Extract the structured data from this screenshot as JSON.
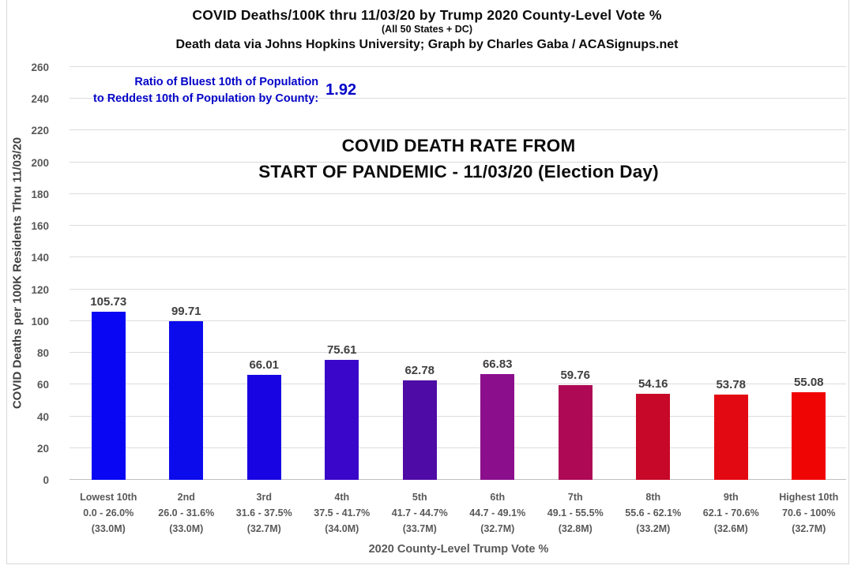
{
  "header": {
    "title": "COVID Deaths/100K thru 11/03/20 by Trump 2020 County-Level Vote %",
    "subtitle": "(All 50 States + DC)",
    "credit": "Death data via Johns Hopkins University; Graph by Charles Gaba / ACASignups.net"
  },
  "ratio": {
    "label_line1": "Ratio of Bluest 10th of Population",
    "label_line2": "to Reddest 10th of Population by County:",
    "value": "1.92"
  },
  "chart_data": {
    "type": "bar",
    "title": "COVID DEATH RATE FROM START OF PANDEMIC - 11/03/20 (Election Day)",
    "title_line1": "COVID DEATH RATE FROM",
    "title_line2": "START OF PANDEMIC - 11/03/20 (Election Day)",
    "xlabel": "2020 County-Level Trump Vote %",
    "ylabel": "COVID Deaths per 100K Residents Thru 11/03/20",
    "ylim": [
      0,
      260
    ],
    "ytick_step": 20,
    "grid": true,
    "legend": "none",
    "categories": [
      {
        "name": "Lowest 10th",
        "range": "0.0 - 26.0%",
        "population": "(33.0M)"
      },
      {
        "name": "2nd",
        "range": "26.0 - 31.6%",
        "population": "(33.0M)"
      },
      {
        "name": "3rd",
        "range": "31.6 - 37.5%",
        "population": "(32.7M)"
      },
      {
        "name": "4th",
        "range": "37.5 - 41.7%",
        "population": "(34.0M)"
      },
      {
        "name": "5th",
        "range": "41.7 - 44.7%",
        "population": "(33.7M)"
      },
      {
        "name": "6th",
        "range": "44.7 - 49.1%",
        "population": "(32.7M)"
      },
      {
        "name": "7th",
        "range": "49.1 - 55.5%",
        "population": "(32.8M)"
      },
      {
        "name": "8th",
        "range": "55.6 - 62.1%",
        "population": "(33.2M)"
      },
      {
        "name": "9th",
        "range": "62.1 - 70.6%",
        "population": "(32.6M)"
      },
      {
        "name": "Highest 10th",
        "range": "70.6 - 100%",
        "population": "(32.7M)"
      }
    ],
    "values": [
      105.73,
      99.71,
      66.01,
      75.61,
      62.78,
      66.83,
      59.76,
      54.16,
      53.78,
      55.08
    ],
    "bar_colors": [
      "#0806F2",
      "#0B0BEC",
      "#1804E2",
      "#3A06C9",
      "#4E0BA6",
      "#8B0E8C",
      "#AE0954",
      "#C70829",
      "#E30912",
      "#F00505"
    ],
    "colors": {
      "ratio_text": "#0404C8",
      "gridline": "#DCDCDC",
      "axis_line": "#BFBFBF",
      "tick_text": "#595959",
      "value_text": "#3F3F3F",
      "title_text": "#0D0D0D"
    }
  }
}
